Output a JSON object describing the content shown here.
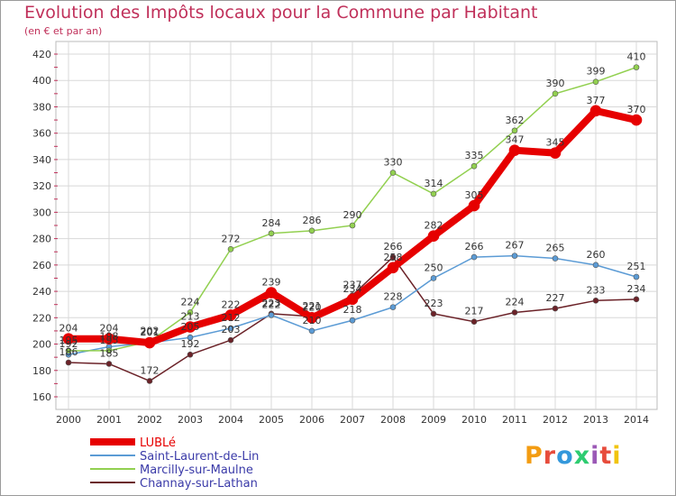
{
  "chart_data": {
    "type": "line",
    "title": "Evolution des Impôts locaux pour la Commune par Habitant",
    "subtitle": "(en € et par an)",
    "categories": [
      "2000",
      "2001",
      "2002",
      "2003",
      "2004",
      "2005",
      "2006",
      "2007",
      "2008",
      "2009",
      "2010",
      "2011",
      "2012",
      "2013",
      "2014"
    ],
    "ylim": [
      160,
      420
    ],
    "yticks": [
      "160",
      "180",
      "200",
      "220",
      "240",
      "260",
      "280",
      "300",
      "320",
      "340",
      "360",
      "380",
      "400",
      "420"
    ],
    "series": [
      {
        "name": "LUBLé",
        "color": "#e60000",
        "values": [
          204,
          204,
          201,
          213,
          222,
          239,
          220,
          234,
          258,
          282,
          305,
          347,
          345,
          377,
          370
        ]
      },
      {
        "name": "Saint-Laurent-de-Lin",
        "color": "#5b9bd5",
        "values": [
          192,
          198,
          201,
          205,
          212,
          222,
          210,
          218,
          228,
          250,
          266,
          267,
          265,
          260,
          251
        ]
      },
      {
        "name": "Marcilly-sur-Maulne",
        "color": "#92d050",
        "values": [
          195,
          195,
          202,
          224,
          272,
          284,
          286,
          290,
          330,
          314,
          335,
          362,
          390,
          399,
          410
        ]
      },
      {
        "name": "Channay-sur-Lathan",
        "color": "#6b2228",
        "values": [
          186,
          185,
          172,
          192,
          203,
          223,
          221,
          237,
          266,
          223,
          217,
          224,
          227,
          233,
          234
        ]
      }
    ],
    "labels": {
      "LUBLé": [
        "204",
        "204",
        "201",
        "213",
        "222",
        "239",
        "220",
        "234",
        "258",
        "282",
        "305",
        "347",
        "345",
        "377",
        "370"
      ],
      "Saint-Laurent-de-Lin": [
        "192",
        "198",
        "201",
        "205",
        "212",
        "222",
        "210",
        "218",
        "228",
        "250",
        "266",
        "267",
        "265",
        "260",
        "251"
      ],
      "Marcilly-sur-Maulne": [
        "195",
        "195",
        "202",
        "224",
        "272",
        "284",
        "286",
        "290",
        "330",
        "314",
        "335",
        "362",
        "390",
        "399",
        "410"
      ],
      "Channay-sur-Lathan": [
        "186",
        "185",
        "172",
        "192",
        "203",
        "223",
        "221",
        "237",
        "266",
        "223",
        "217",
        "224",
        "227",
        "233",
        "234"
      ]
    },
    "grid": true,
    "legend_position": "bottom-left"
  },
  "brand": {
    "letters": [
      "P",
      "r",
      "o",
      "x",
      "i",
      "t",
      "i"
    ],
    "colors": [
      "#f39c12",
      "#e74c3c",
      "#3498db",
      "#2ecc71",
      "#9b59b6",
      "#e74c3c",
      "#f1c40f"
    ]
  }
}
